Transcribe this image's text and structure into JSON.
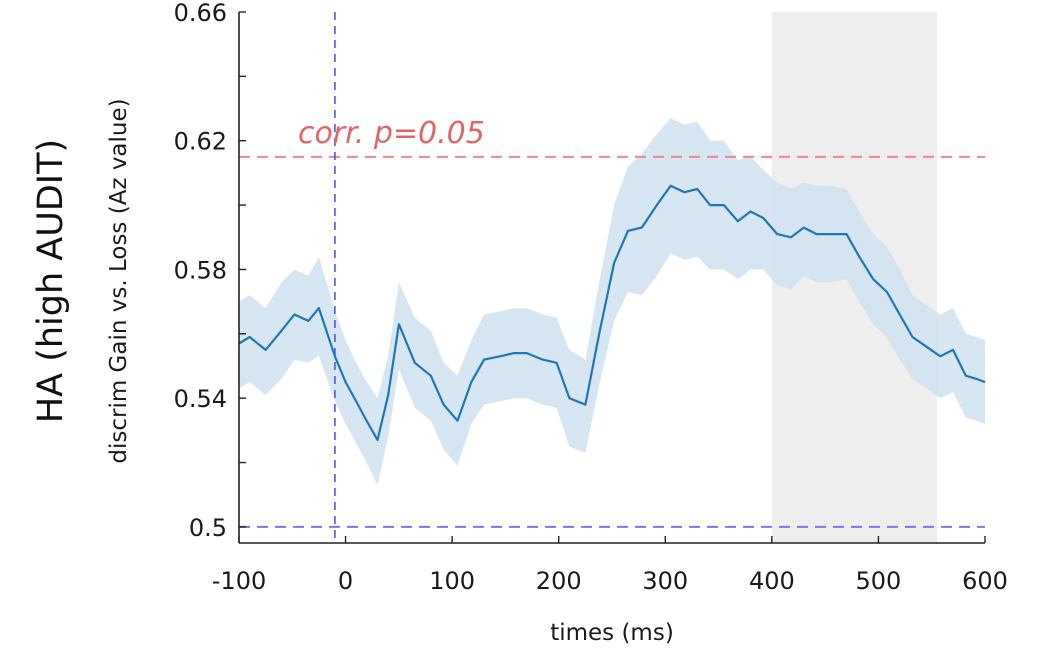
{
  "chart_data": {
    "type": "line",
    "side_label": "HA (high AUDIT)",
    "ylabel": "discrim Gain vs. Loss (Az value)",
    "xlabel": "times (ms)",
    "xlim": [
      -100,
      600
    ],
    "ylim": [
      0.495,
      0.66
    ],
    "x_ticks": [
      -100,
      0,
      100,
      200,
      300,
      400,
      500,
      600
    ],
    "x_tick_labels": [
      "-100",
      "0",
      "100",
      "200",
      "300",
      "400",
      "500",
      "600"
    ],
    "y_ticks": [
      0.5,
      0.52,
      0.54,
      0.56,
      0.58,
      0.6,
      0.62,
      0.64,
      0.66
    ],
    "y_tick_labels": [
      "0.5",
      "",
      "0.54",
      "",
      "0.58",
      "",
      "0.62",
      "",
      "0.66"
    ],
    "shaded_window": {
      "x_start": 400,
      "x_end": 555,
      "color": "#eeeeee"
    },
    "reference_lines": [
      {
        "id": "significance",
        "axis": "y",
        "value": 0.615,
        "color": "#ee8888",
        "label": "corr. p=0.05",
        "label_color": "#e06666"
      },
      {
        "id": "chance",
        "axis": "y",
        "value": 0.5,
        "color": "#7777ee",
        "label": ""
      },
      {
        "id": "stimulus-onset",
        "axis": "x",
        "value": -10,
        "color": "#5555dd",
        "label": ""
      }
    ],
    "series": [
      {
        "color": "#1f77b4",
        "band_color": "#cfe2f1",
        "x": [
          -100,
          -90,
          -75,
          -60,
          -48,
          -35,
          -25,
          -10,
          0,
          10,
          18,
          30,
          40,
          50,
          65,
          80,
          92,
          105,
          118,
          130,
          145,
          158,
          170,
          185,
          198,
          210,
          225,
          238,
          252,
          265,
          278,
          292,
          305,
          318,
          330,
          342,
          355,
          368,
          380,
          392,
          405,
          418,
          430,
          442,
          455,
          470,
          482,
          495,
          508,
          520,
          532,
          545,
          558,
          570,
          582,
          592,
          600
        ],
        "y": [
          0.557,
          0.559,
          0.555,
          0.561,
          0.566,
          0.564,
          0.568,
          0.553,
          0.545,
          0.539,
          0.534,
          0.527,
          0.541,
          0.563,
          0.551,
          0.547,
          0.538,
          0.533,
          0.545,
          0.552,
          0.553,
          0.554,
          0.554,
          0.552,
          0.551,
          0.54,
          0.538,
          0.56,
          0.582,
          0.592,
          0.593,
          0.6,
          0.606,
          0.604,
          0.605,
          0.6,
          0.6,
          0.595,
          0.598,
          0.596,
          0.591,
          0.59,
          0.593,
          0.591,
          0.591,
          0.591,
          0.584,
          0.577,
          0.573,
          0.566,
          0.559,
          0.556,
          0.553,
          0.555,
          0.547,
          0.546,
          0.545
        ],
        "y_upper": [
          0.57,
          0.572,
          0.568,
          0.576,
          0.58,
          0.578,
          0.584,
          0.567,
          0.558,
          0.551,
          0.546,
          0.54,
          0.553,
          0.576,
          0.565,
          0.561,
          0.551,
          0.547,
          0.558,
          0.566,
          0.567,
          0.568,
          0.568,
          0.566,
          0.565,
          0.555,
          0.552,
          0.576,
          0.6,
          0.612,
          0.616,
          0.622,
          0.627,
          0.625,
          0.626,
          0.62,
          0.62,
          0.614,
          0.615,
          0.611,
          0.607,
          0.605,
          0.607,
          0.606,
          0.606,
          0.605,
          0.598,
          0.591,
          0.587,
          0.58,
          0.572,
          0.569,
          0.566,
          0.568,
          0.56,
          0.559,
          0.558
        ],
        "y_lower": [
          0.543,
          0.545,
          0.541,
          0.546,
          0.552,
          0.551,
          0.553,
          0.539,
          0.532,
          0.526,
          0.521,
          0.513,
          0.528,
          0.549,
          0.537,
          0.533,
          0.524,
          0.519,
          0.532,
          0.538,
          0.539,
          0.54,
          0.54,
          0.538,
          0.537,
          0.525,
          0.523,
          0.544,
          0.564,
          0.573,
          0.572,
          0.578,
          0.585,
          0.583,
          0.584,
          0.58,
          0.58,
          0.577,
          0.58,
          0.58,
          0.575,
          0.574,
          0.578,
          0.576,
          0.576,
          0.577,
          0.57,
          0.563,
          0.559,
          0.552,
          0.546,
          0.543,
          0.54,
          0.542,
          0.534,
          0.533,
          0.532
        ]
      }
    ]
  }
}
